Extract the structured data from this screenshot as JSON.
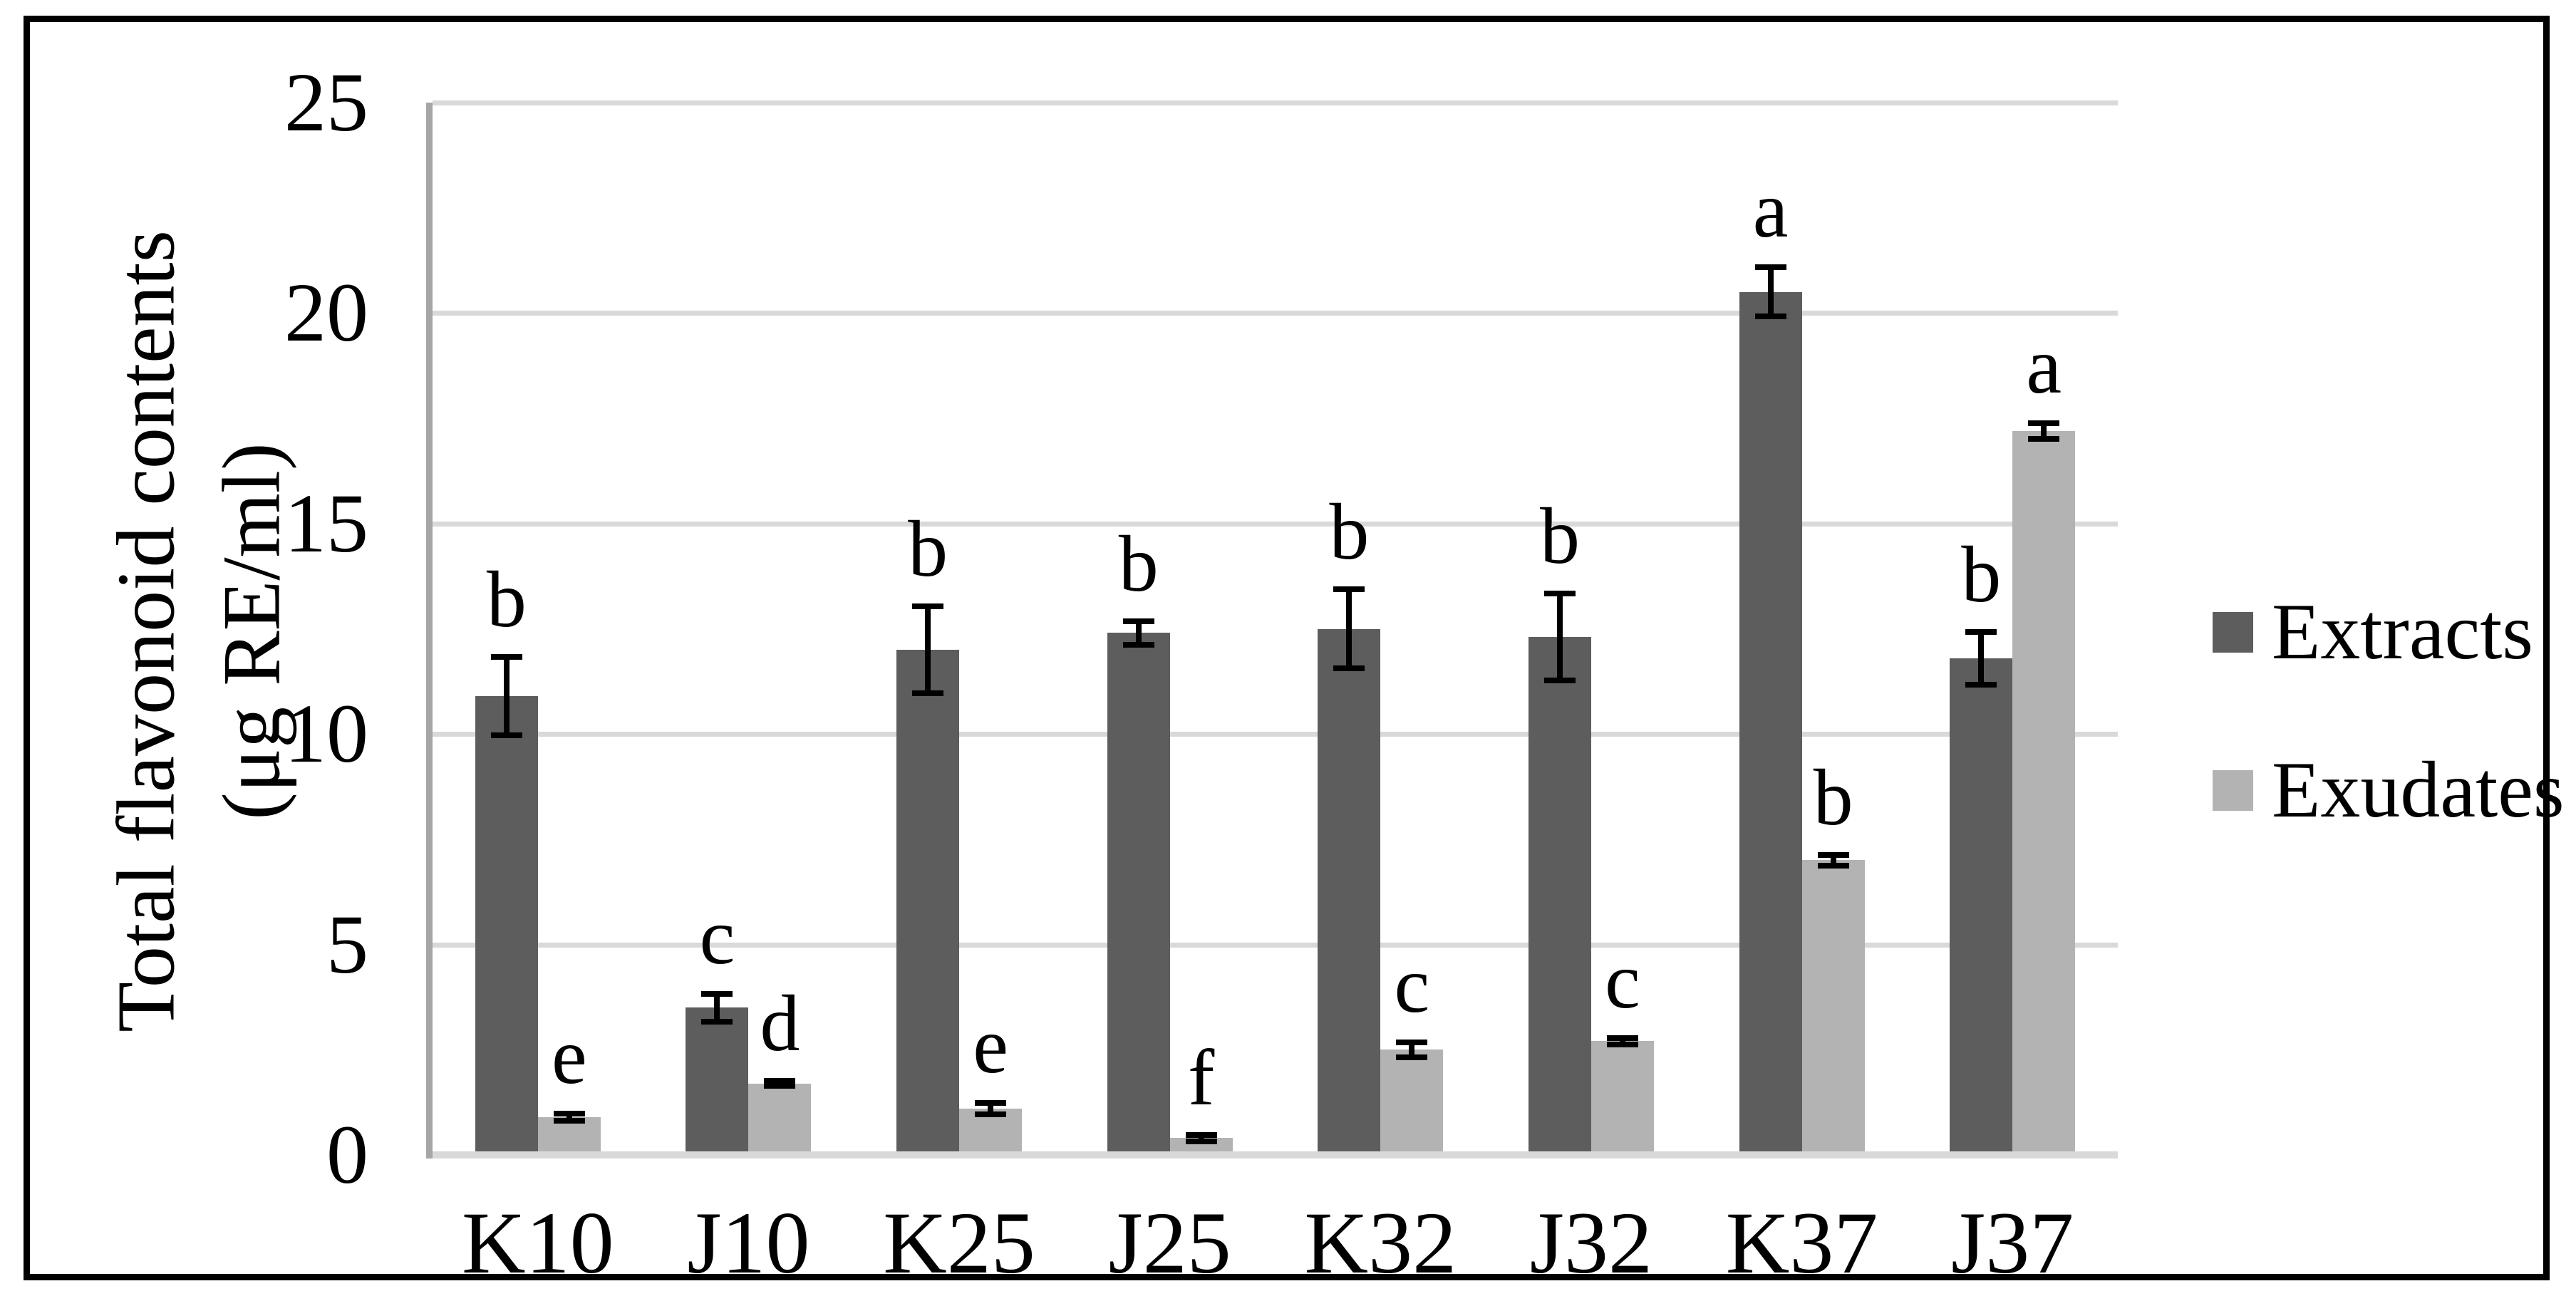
{
  "colors": {
    "extracts_bar": "#5d5d5d",
    "exudates_bar": "#b3b3b3",
    "gridline": "#d9d9d9",
    "baseline": "#d9d9d9",
    "y_axis_line": "#a6a6a6",
    "error_bar": "#000000",
    "frame_border": "#000000",
    "background": "#ffffff",
    "text": "#000000"
  },
  "chart_data": {
    "type": "bar",
    "title": "",
    "ylabel_line1": "Total flavonoid contents",
    "ylabel_line2": "(μg RE/ml)",
    "xlabel": "",
    "categories": [
      "K10",
      "J10",
      "K25",
      "J25",
      "K32",
      "J32",
      "K37",
      "J37"
    ],
    "y_ticks": [
      0,
      5,
      10,
      15,
      20,
      25
    ],
    "ylim": [
      0,
      25
    ],
    "grid": "horizontal",
    "legend_position": "right",
    "series": [
      {
        "name": "Extracts",
        "color": "#5d5d5d",
        "values": [
          10.9,
          3.5,
          12.0,
          12.4,
          12.5,
          12.3,
          20.5,
          11.8
        ],
        "errors": [
          1.0,
          0.4,
          1.1,
          0.35,
          1.0,
          1.1,
          0.65,
          0.7
        ],
        "letters": [
          "b",
          "c",
          "b",
          "b",
          "b",
          "b",
          "a",
          "b"
        ]
      },
      {
        "name": "Exudates",
        "color": "#b3b3b3",
        "values": [
          0.9,
          1.7,
          1.1,
          0.4,
          2.5,
          2.7,
          7.0,
          17.2
        ],
        "errors": [
          0.15,
          0.12,
          0.2,
          0.15,
          0.25,
          0.15,
          0.2,
          0.25
        ],
        "letters": [
          "e",
          "d",
          "e",
          "f",
          "c",
          "c",
          "b",
          "a"
        ]
      }
    ]
  }
}
